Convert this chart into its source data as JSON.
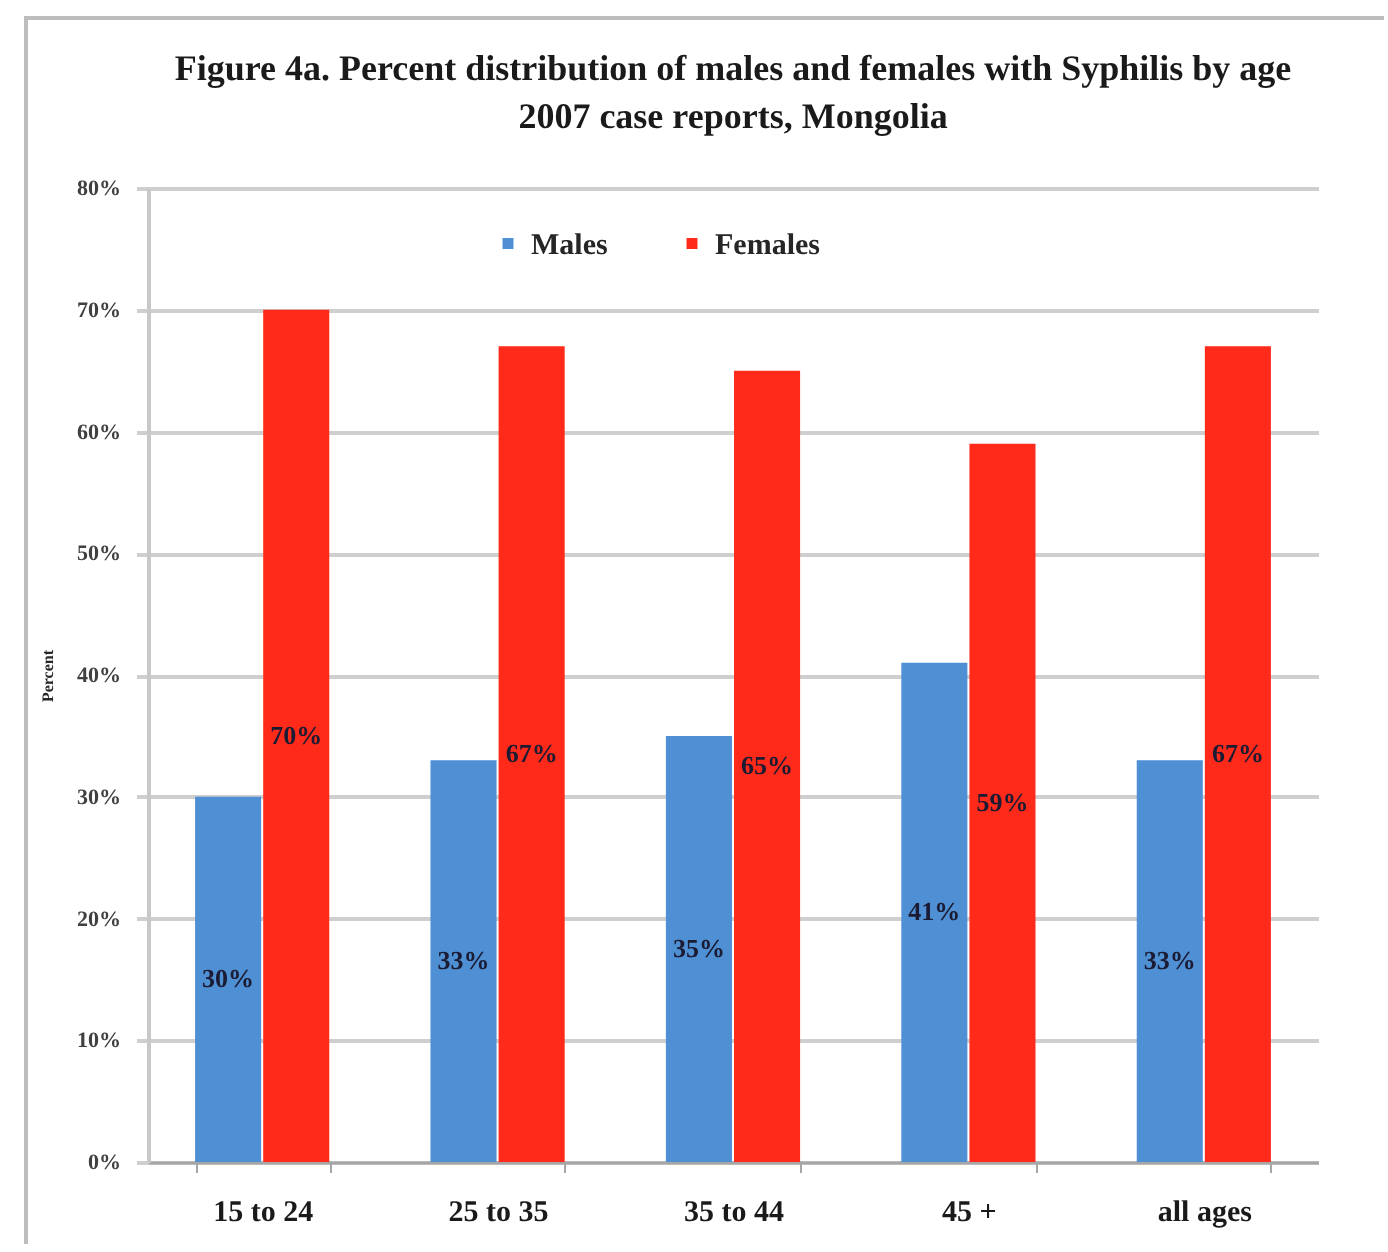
{
  "chart_data": {
    "type": "bar",
    "title": "Figure 4a. Percent distribution of males and females with Syphilis by age",
    "subtitle": "2007 case reports, Mongolia",
    "ylabel": "Percent",
    "categories": [
      "15 to 24",
      "25 to 35",
      "35 to 44",
      "45 +",
      "all ages"
    ],
    "series": [
      {
        "name": "Males",
        "color": "#4f8fd3",
        "values": [
          30,
          33,
          35,
          41,
          33
        ],
        "value_labels": [
          "30%",
          "33%",
          "35%",
          "41%",
          "33%"
        ]
      },
      {
        "name": "Females",
        "color": "#ff2a1a",
        "values": [
          70,
          67,
          65,
          59,
          67
        ],
        "value_labels": [
          "70%",
          "67%",
          "65%",
          "59%",
          "67%"
        ]
      }
    ],
    "ylim": [
      0,
      80
    ],
    "yticks": [
      {
        "value": 0,
        "label": "0%"
      },
      {
        "value": 10,
        "label": "10%"
      },
      {
        "value": 20,
        "label": "20%"
      },
      {
        "value": 30,
        "label": "30%"
      },
      {
        "value": 40,
        "label": "40%"
      },
      {
        "value": 50,
        "label": "50%"
      },
      {
        "value": 60,
        "label": "60%"
      },
      {
        "value": 70,
        "label": "70%"
      },
      {
        "value": 80,
        "label": "80%"
      }
    ],
    "grid": "y",
    "legend": "top"
  }
}
